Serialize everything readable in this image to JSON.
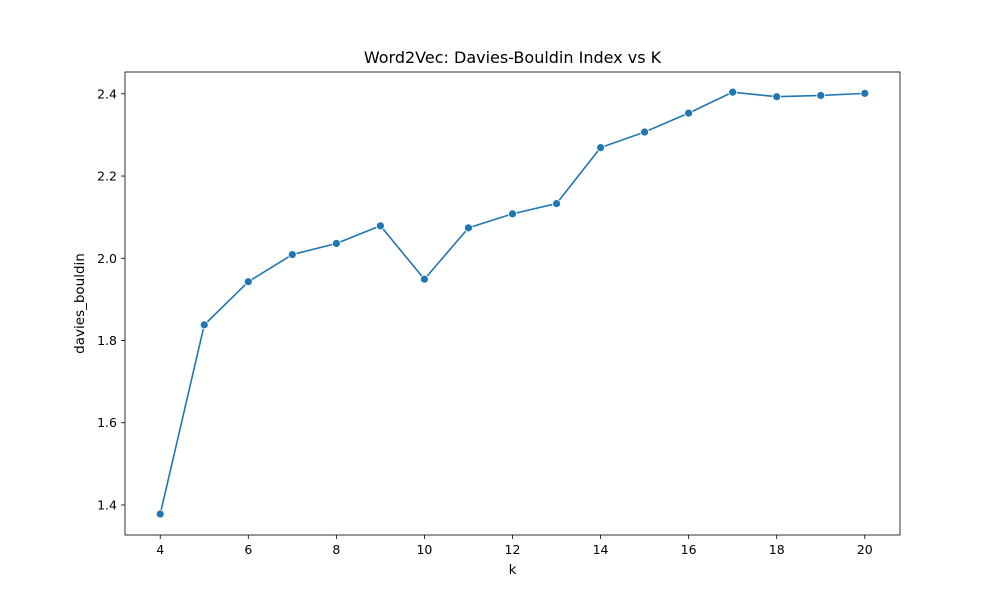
{
  "chart_data": {
    "type": "line",
    "title": "Word2Vec: Davies-Bouldin Index vs K",
    "xlabel": "k",
    "ylabel": "davies_bouldin",
    "x": [
      4,
      5,
      6,
      7,
      8,
      9,
      10,
      11,
      12,
      13,
      14,
      15,
      16,
      17,
      18,
      19,
      20
    ],
    "series": [
      {
        "values": [
          1.378,
          1.838,
          1.943,
          2.009,
          2.036,
          2.079,
          1.949,
          2.074,
          2.108,
          2.133,
          2.269,
          2.307,
          2.353,
          2.404,
          2.393,
          2.396,
          2.401
        ],
        "color": "#1f77b4",
        "marker": "circle"
      }
    ],
    "xlim": [
      3.2,
      20.8
    ],
    "ylim": [
      1.327,
      2.453
    ],
    "xticks": [
      4,
      6,
      8,
      10,
      12,
      14,
      16,
      18,
      20
    ],
    "yticks": [
      1.4,
      1.6,
      1.8,
      2.0,
      2.2,
      2.4
    ],
    "xtick_labels": [
      "4",
      "6",
      "8",
      "10",
      "12",
      "14",
      "16",
      "18",
      "20"
    ],
    "ytick_labels": [
      "1.4",
      "1.6",
      "1.8",
      "2.0",
      "2.2",
      "2.4"
    ],
    "grid": false,
    "legend": false
  }
}
